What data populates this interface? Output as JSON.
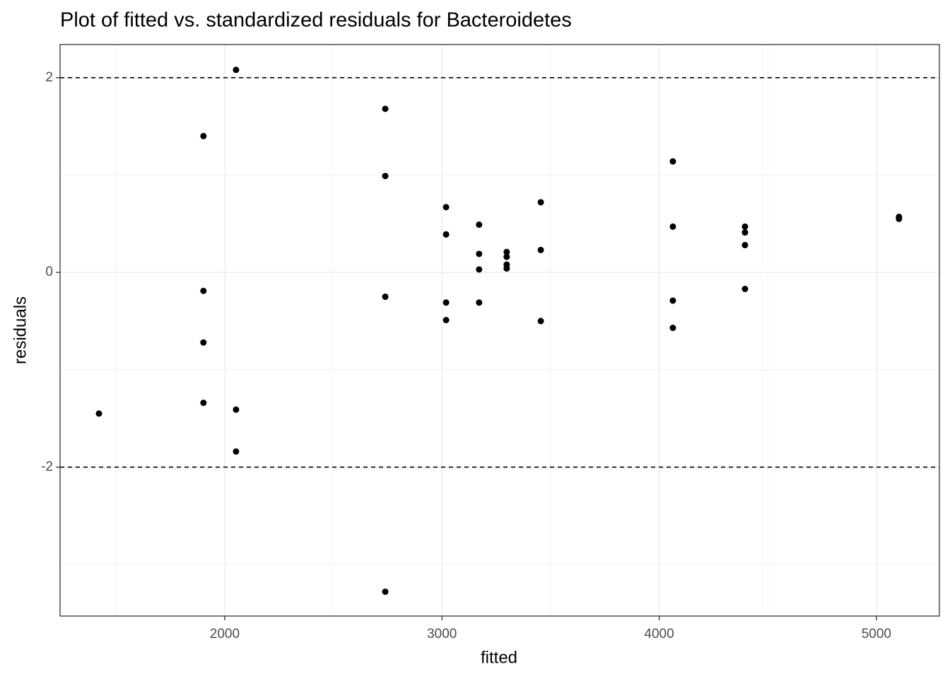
{
  "chart_data": {
    "type": "scatter",
    "title": "Plot of fitted vs. standardized residuals for Bacteroidetes",
    "x_label": "fitted",
    "y_label": "residuals",
    "x": [
      1421,
      1902,
      1902,
      1902,
      1902,
      2052,
      2052,
      2052,
      2739,
      2739,
      2739,
      2739,
      3019,
      3019,
      3019,
      3019,
      3171,
      3171,
      3171,
      3171,
      3298,
      3298,
      3298,
      3298,
      3455,
      3455,
      3455,
      4063,
      4063,
      4063,
      4063,
      4395,
      4395,
      4395,
      4395,
      5104,
      5104
    ],
    "values": [
      -1.45,
      1.4,
      -0.19,
      -0.72,
      -1.34,
      2.08,
      -1.41,
      -1.84,
      1.68,
      0.99,
      -0.25,
      -3.28,
      0.67,
      0.39,
      -0.31,
      -0.49,
      0.49,
      0.19,
      0.03,
      -0.31,
      0.21,
      0.16,
      0.08,
      0.04,
      0.72,
      0.23,
      -0.5,
      1.14,
      0.47,
      -0.29,
      -0.57,
      0.47,
      0.41,
      0.28,
      -0.17,
      0.57,
      0.55
    ],
    "color": "#000000",
    "xlim": [
      1242,
      5290
    ],
    "ylim": [
      -3.53,
      2.34
    ],
    "xticks": [
      2000,
      3000,
      4000,
      5000
    ],
    "yticks": [
      -2,
      0,
      2
    ],
    "reference_lines": [
      -2,
      2
    ],
    "grid": true
  }
}
